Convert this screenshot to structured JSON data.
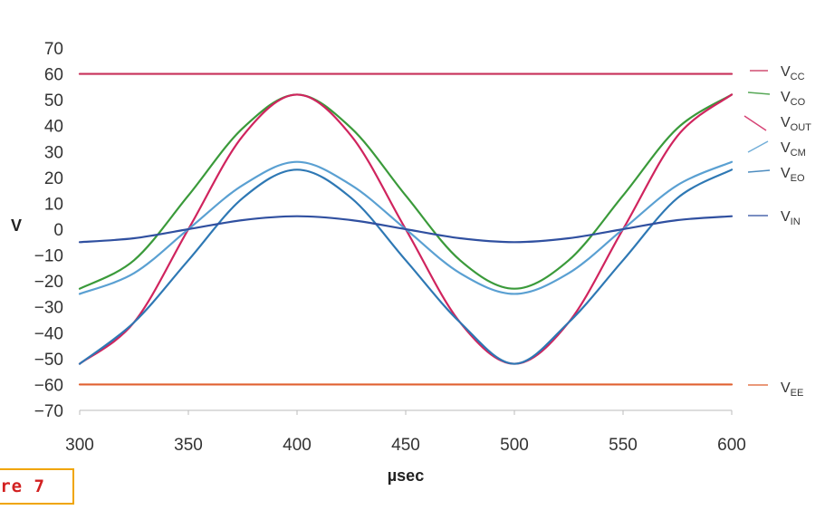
{
  "figure_tag": "re 7",
  "chart_data": {
    "type": "line",
    "title": "",
    "xlabel": "µsec",
    "ylabel": "V",
    "xlim": [
      300,
      600
    ],
    "ylim": [
      -70,
      70
    ],
    "x_ticks": [
      "300",
      "350",
      "400",
      "450",
      "500",
      "550",
      "600"
    ],
    "y_ticks": [
      "70",
      "60",
      "50",
      "40",
      "30",
      "20",
      "10",
      "0",
      "−10",
      "−20",
      "−30",
      "−40",
      "−50",
      "−60",
      "−70"
    ],
    "grid": false,
    "legend_position": "right",
    "x": [
      300,
      325,
      350,
      375,
      400,
      425,
      450,
      475,
      500,
      525,
      550,
      575,
      600
    ],
    "series": [
      {
        "name": "VCC",
        "base": "V",
        "sub": "CC",
        "color": "#c8305a",
        "values": [
          60,
          60,
          60,
          60,
          60,
          60,
          60,
          60,
          60,
          60,
          60,
          60,
          60
        ]
      },
      {
        "name": "VCO",
        "base": "V",
        "sub": "CO",
        "color": "#3a9a3a",
        "values": [
          -23,
          -12,
          13,
          39,
          52,
          39,
          13,
          -12,
          -23,
          -12,
          13,
          39,
          52
        ]
      },
      {
        "name": "VOUT",
        "base": "V",
        "sub": "OUT",
        "color": "#d0245e",
        "values": [
          -52,
          -36,
          0,
          36,
          52,
          36,
          0,
          -36,
          -52,
          -36,
          0,
          36,
          52
        ]
      },
      {
        "name": "VCM",
        "base": "V",
        "sub": "CM",
        "color": "#5aa0d2",
        "values": [
          -25,
          -17,
          0,
          17,
          26,
          17,
          0,
          -17,
          -25,
          -17,
          0,
          17,
          26
        ]
      },
      {
        "name": "VEO",
        "base": "V",
        "sub": "EO",
        "color": "#2e78b4",
        "values": [
          -52,
          -36,
          -12,
          12,
          23,
          12,
          -12,
          -36,
          -52,
          -36,
          -12,
          12,
          23
        ]
      },
      {
        "name": "VIN",
        "base": "V",
        "sub": "IN",
        "color": "#3050a0",
        "values": [
          -5,
          -3.5,
          0,
          3.5,
          5,
          3.5,
          0,
          -3.5,
          -5,
          -3.5,
          0,
          3.5,
          5
        ]
      },
      {
        "name": "VEE",
        "base": "V",
        "sub": "EE",
        "color": "#e06030",
        "values": [
          -60,
          -60,
          -60,
          -60,
          -60,
          -60,
          -60,
          -60,
          -60,
          -60,
          -60,
          -60,
          -60
        ]
      }
    ]
  }
}
